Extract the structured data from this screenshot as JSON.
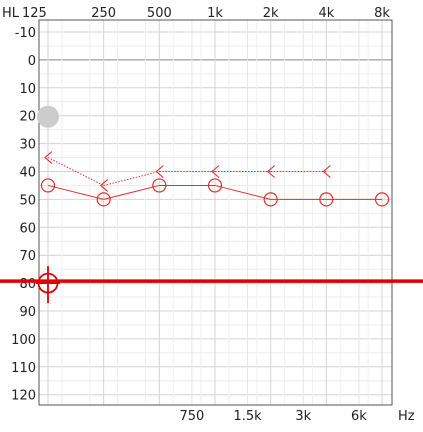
{
  "chart_data": {
    "type": "line",
    "xlabel": "Hz",
    "ylabel": "HL",
    "x_scale": "log2",
    "y_inverted": true,
    "xlim": [
      125,
      8000
    ],
    "ylim": [
      -10,
      120
    ],
    "grid": true,
    "x_ticks_top": [
      {
        "value": 125,
        "label": "125"
      },
      {
        "value": 250,
        "label": "250"
      },
      {
        "value": 500,
        "label": "500"
      },
      {
        "value": 1000,
        "label": "1k"
      },
      {
        "value": 2000,
        "label": "2k"
      },
      {
        "value": 4000,
        "label": "4k"
      },
      {
        "value": 8000,
        "label": "8k"
      }
    ],
    "x_ticks_bottom": [
      {
        "value": 750,
        "label": "750"
      },
      {
        "value": 1500,
        "label": "1.5k"
      },
      {
        "value": 3000,
        "label": "3k"
      },
      {
        "value": 6000,
        "label": "6k"
      }
    ],
    "y_ticks": [
      -10,
      0,
      10,
      20,
      30,
      40,
      50,
      60,
      70,
      80,
      90,
      100,
      110,
      120
    ],
    "series": [
      {
        "marker": "circle",
        "line_style": "solid",
        "color": "#e03030",
        "points": [
          {
            "x": 125,
            "y": 45
          },
          {
            "x": 250,
            "y": 50
          },
          {
            "x": 500,
            "y": 45
          },
          {
            "x": 1000,
            "y": 45
          },
          {
            "x": 2000,
            "y": 50
          },
          {
            "x": 4000,
            "y": 50
          },
          {
            "x": 8000,
            "y": 50
          }
        ]
      },
      {
        "marker": "bracket-left",
        "line_style": "dotted",
        "color": "#e03030",
        "points": [
          {
            "x": 125,
            "y": 35
          },
          {
            "x": 250,
            "y": 45
          },
          {
            "x": 500,
            "y": 40
          },
          {
            "x": 1000,
            "y": 40
          },
          {
            "x": 2000,
            "y": 40
          },
          {
            "x": 4000,
            "y": 40
          }
        ]
      }
    ],
    "hover_marker": {
      "x": 125,
      "y": 20,
      "color": "#cccccc"
    },
    "cursor": {
      "x": 125,
      "y": 80,
      "color": "#e00000"
    },
    "colors": {
      "accent": "#e03030",
      "cursor": "#e00000",
      "grid": "#d4d4d4",
      "plot_border": "#555555",
      "zero_line": "#888888"
    }
  }
}
